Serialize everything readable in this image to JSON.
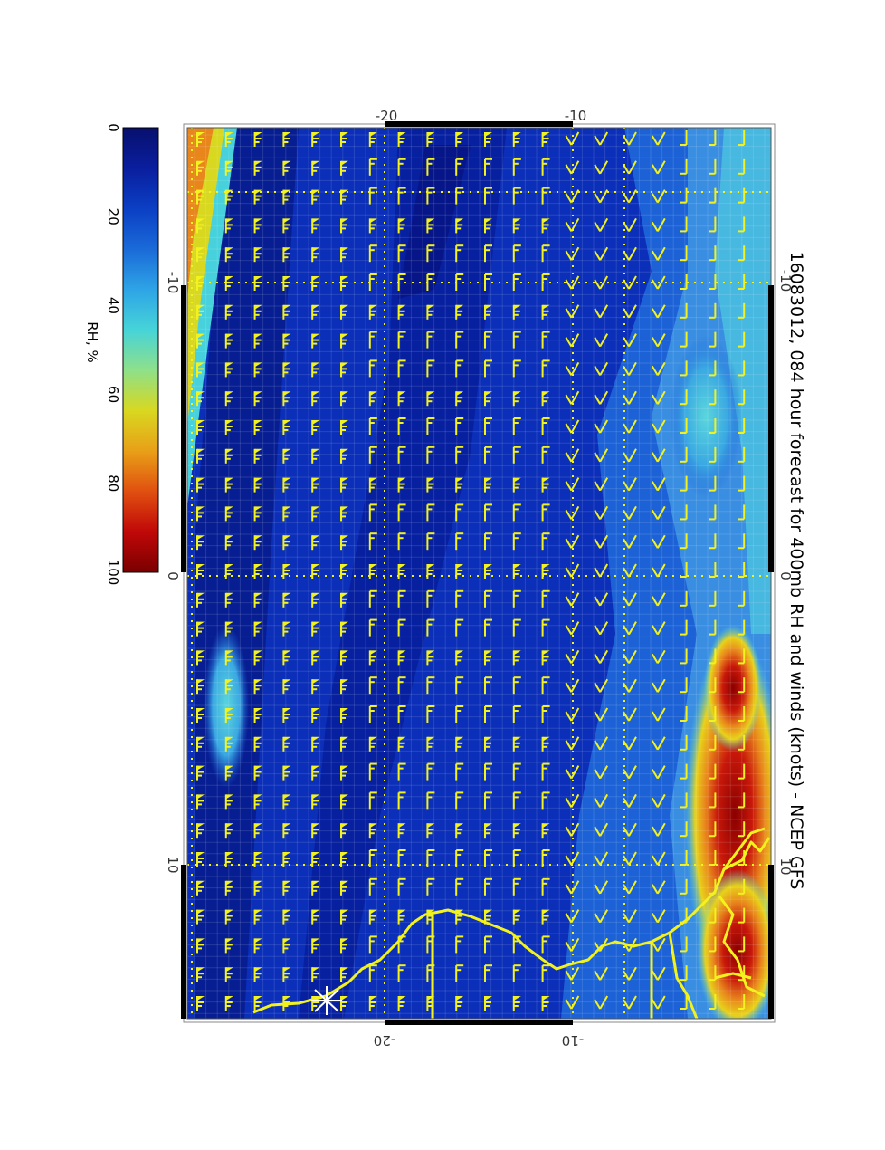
{
  "title": "16083012, 084 hour forecast for 400mb RH and winds (knots) - NCEP GFS",
  "colorbar": {
    "label": "RH, %",
    "ticks": [
      "0",
      "20",
      "40",
      "60",
      "80",
      "100"
    ],
    "min": 0,
    "max": 100,
    "colors": [
      "#08106e",
      "#0a1e9e",
      "#0b3fc4",
      "#1a6ad8",
      "#2ea4e6",
      "#46d4d8",
      "#8ee08a",
      "#d8d820",
      "#e8a018",
      "#e05010",
      "#c00808",
      "#7a0000"
    ]
  },
  "map": {
    "top_lon_labels": [
      "-20",
      "-10"
    ],
    "bottom_lon_labels": [
      "-20",
      "-10"
    ],
    "left_lat_labels": [
      "-10",
      "0",
      "10"
    ],
    "right_lat_labels": [
      "-10",
      "0",
      "10"
    ],
    "field_colors": {
      "background": "#0b2fb8",
      "dark_band": "#061a8a",
      "moist_band": "#1c62d6",
      "light_band": "#3a8ee2",
      "cyan": "#47d1dc",
      "yellow": "#e8d21a",
      "orange": "#e8861c",
      "red": "#c8180a"
    },
    "overlay_color": "#f2f21e",
    "grid_color": "#f2f21e"
  }
}
